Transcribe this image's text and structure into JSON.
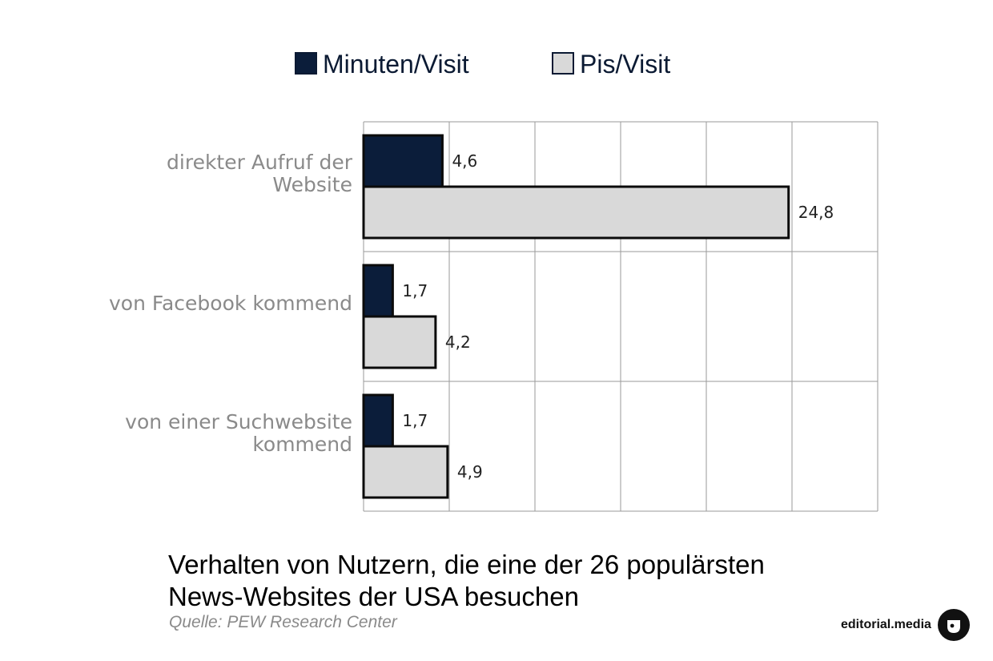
{
  "chart_data": {
    "type": "bar",
    "orientation": "horizontal",
    "categories": [
      [
        "direkter Aufruf der",
        "Website"
      ],
      [
        "von Facebook kommend"
      ],
      [
        "von einer Suchwebsite",
        "kommend"
      ]
    ],
    "series": [
      {
        "name": "Minuten/Visit",
        "color": "#0b1d3a",
        "values": [
          4.6,
          1.7,
          1.7
        ],
        "value_labels": [
          "4,6",
          "1,7",
          "1,7"
        ]
      },
      {
        "name": "Pis/Visit",
        "color": "#d9d9d9",
        "values": [
          24.8,
          4.2,
          4.9
        ],
        "value_labels": [
          "24,8",
          "4,2",
          "4,9"
        ]
      }
    ],
    "xlim": [
      0,
      30
    ],
    "x_gridlines": [
      0,
      5,
      10,
      15,
      20,
      25,
      30
    ],
    "grid": true,
    "legend_position": "top",
    "title": "Verhalten von Nutzern, die eine der 26 populärsten News-Websites der USA besuchen"
  },
  "title_lines": [
    "Verhalten von Nutzern, die eine der 26 populärsten",
    "News-Websites der USA besuchen"
  ],
  "source": "Quelle: PEW Research Center",
  "brand": {
    "text": "editorial.media",
    "logo_icon": "editorial-media-logo-icon"
  }
}
